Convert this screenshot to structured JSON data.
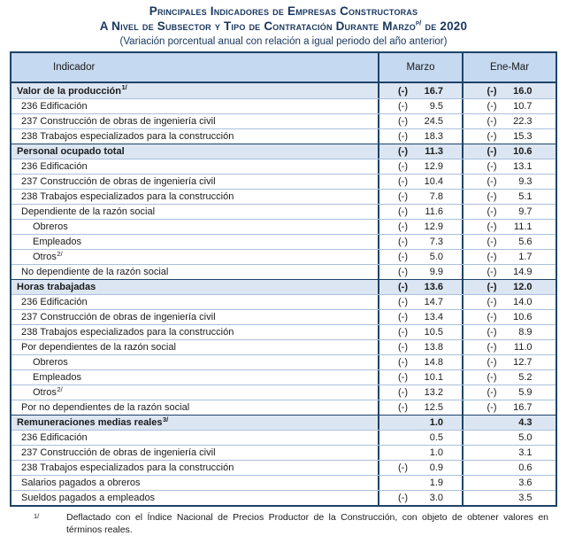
{
  "title": {
    "line1": "Principales Indicadores de Empresas Constructoras",
    "line2_prefix": "A Nivel de Subsector y Tipo de Contratación Durante Marzo",
    "line2_sup": "p/",
    "line2_suffix": " de 2020",
    "subtitle": "(Variación porcentual anual con relación a igual periodo del año anterior)"
  },
  "table": {
    "columns": [
      "Indicador",
      "Marzo",
      "Ene-Mar"
    ],
    "rows": [
      {
        "label": "Valor de la producción",
        "sup": "1/",
        "level": "section",
        "marzo": {
          "sign": "(-)",
          "value": "16.7"
        },
        "enemar": {
          "sign": "(-)",
          "value": "16.0"
        }
      },
      {
        "label": "236 Edificación",
        "sup": "",
        "level": "1",
        "marzo": {
          "sign": "(-)",
          "value": "9.5"
        },
        "enemar": {
          "sign": "(-)",
          "value": "10.7"
        }
      },
      {
        "label": "237 Construcción de obras de ingeniería civil",
        "sup": "",
        "level": "1",
        "marzo": {
          "sign": "(-)",
          "value": "24.5"
        },
        "enemar": {
          "sign": "(-)",
          "value": "22.3"
        }
      },
      {
        "label": "238 Trabajos especializados para la construcción",
        "sup": "",
        "level": "1",
        "marzo": {
          "sign": "(-)",
          "value": "18.3"
        },
        "enemar": {
          "sign": "(-)",
          "value": "15.3"
        }
      },
      {
        "label": "Personal ocupado total",
        "sup": "",
        "level": "section",
        "marzo": {
          "sign": "(-)",
          "value": "11.3"
        },
        "enemar": {
          "sign": "(-)",
          "value": "10.6"
        }
      },
      {
        "label": "236 Edificación",
        "sup": "",
        "level": "1",
        "marzo": {
          "sign": "(-)",
          "value": "12.9"
        },
        "enemar": {
          "sign": "(-)",
          "value": "13.1"
        }
      },
      {
        "label": "237 Construcción de obras de ingeniería civil",
        "sup": "",
        "level": "1",
        "marzo": {
          "sign": "(-)",
          "value": "10.4"
        },
        "enemar": {
          "sign": "(-)",
          "value": "9.3"
        }
      },
      {
        "label": "238 Trabajos especializados para la construcción",
        "sup": "",
        "level": "1",
        "marzo": {
          "sign": "(-)",
          "value": "7.8"
        },
        "enemar": {
          "sign": "(-)",
          "value": "5.1"
        }
      },
      {
        "label": "Dependiente de la razón social",
        "sup": "",
        "level": "1",
        "marzo": {
          "sign": "(-)",
          "value": "11.6"
        },
        "enemar": {
          "sign": "(-)",
          "value": "9.7"
        }
      },
      {
        "label": "Obreros",
        "sup": "",
        "level": "2",
        "marzo": {
          "sign": "(-)",
          "value": "12.9"
        },
        "enemar": {
          "sign": "(-)",
          "value": "11.1"
        }
      },
      {
        "label": "Empleados",
        "sup": "",
        "level": "2",
        "marzo": {
          "sign": "(-)",
          "value": "7.3"
        },
        "enemar": {
          "sign": "(-)",
          "value": "5.6"
        }
      },
      {
        "label": "Otros",
        "sup": "2/",
        "level": "2",
        "marzo": {
          "sign": "(-)",
          "value": "5.0"
        },
        "enemar": {
          "sign": "(-)",
          "value": "1.7"
        }
      },
      {
        "label": "No dependiente de la razón social",
        "sup": "",
        "level": "1",
        "marzo": {
          "sign": "(-)",
          "value": "9.9"
        },
        "enemar": {
          "sign": "(-)",
          "value": "14.9"
        }
      },
      {
        "label": "Horas trabajadas",
        "sup": "",
        "level": "section",
        "marzo": {
          "sign": "(-)",
          "value": "13.6"
        },
        "enemar": {
          "sign": "(-)",
          "value": "12.0"
        }
      },
      {
        "label": "236 Edificación",
        "sup": "",
        "level": "1",
        "marzo": {
          "sign": "(-)",
          "value": "14.7"
        },
        "enemar": {
          "sign": "(-)",
          "value": "14.0"
        }
      },
      {
        "label": "237 Construcción de obras de ingeniería civil",
        "sup": "",
        "level": "1",
        "marzo": {
          "sign": "(-)",
          "value": "13.4"
        },
        "enemar": {
          "sign": "(-)",
          "value": "10.6"
        }
      },
      {
        "label": "238 Trabajos especializados para la construcción",
        "sup": "",
        "level": "1",
        "marzo": {
          "sign": "(-)",
          "value": "10.5"
        },
        "enemar": {
          "sign": "(-)",
          "value": "8.9"
        }
      },
      {
        "label": "Por dependientes de la razón social",
        "sup": "",
        "level": "1",
        "marzo": {
          "sign": "(-)",
          "value": "13.8"
        },
        "enemar": {
          "sign": "(-)",
          "value": "11.0"
        }
      },
      {
        "label": "Obreros",
        "sup": "",
        "level": "2",
        "marzo": {
          "sign": "(-)",
          "value": "14.8"
        },
        "enemar": {
          "sign": "(-)",
          "value": "12.7"
        }
      },
      {
        "label": "Empleados",
        "sup": "",
        "level": "2",
        "marzo": {
          "sign": "(-)",
          "value": "10.1"
        },
        "enemar": {
          "sign": "(-)",
          "value": "5.2"
        }
      },
      {
        "label": "Otros",
        "sup": "2/",
        "level": "2",
        "marzo": {
          "sign": "(-)",
          "value": "13.2"
        },
        "enemar": {
          "sign": "(-)",
          "value": "5.9"
        }
      },
      {
        "label": "Por no dependientes de la razón social",
        "sup": "",
        "level": "1",
        "marzo": {
          "sign": "(-)",
          "value": "12.5"
        },
        "enemar": {
          "sign": "(-)",
          "value": "16.7"
        }
      },
      {
        "label": "Remuneraciones medias reales",
        "sup": "3/",
        "level": "section",
        "marzo": {
          "sign": "",
          "value": "1.0"
        },
        "enemar": {
          "sign": "",
          "value": "4.3"
        }
      },
      {
        "label": "236 Edificación",
        "sup": "",
        "level": "1",
        "marzo": {
          "sign": "",
          "value": "0.5"
        },
        "enemar": {
          "sign": "",
          "value": "5.0"
        }
      },
      {
        "label": "237 Construcción de obras de ingeniería civil",
        "sup": "",
        "level": "1",
        "marzo": {
          "sign": "",
          "value": "1.0"
        },
        "enemar": {
          "sign": "",
          "value": "3.1"
        }
      },
      {
        "label": "238 Trabajos especializados para la construcción",
        "sup": "",
        "level": "1",
        "marzo": {
          "sign": "(-)",
          "value": "0.9"
        },
        "enemar": {
          "sign": "",
          "value": "0.6"
        }
      },
      {
        "label": "Salarios pagados a obreros",
        "sup": "",
        "level": "1",
        "marzo": {
          "sign": "",
          "value": "1.9"
        },
        "enemar": {
          "sign": "",
          "value": "3.6"
        }
      },
      {
        "label": "Sueldos pagados a empleados",
        "sup": "",
        "level": "1",
        "marzo": {
          "sign": "(-)",
          "value": "3.0"
        },
        "enemar": {
          "sign": "",
          "value": "3.5"
        }
      }
    ]
  },
  "footnote": {
    "marker": "1/",
    "text": "Deflactado con el Índice Nacional de Precios Productor de la Construcción, con objeto de obtener valores en términos reales."
  },
  "colors": {
    "title_navy": "#17365D",
    "border_navy": "#1F4368",
    "header_bg": "#C5D9F1",
    "section_bg": "#DCE6F3",
    "row_divider": "#A9C0DE"
  }
}
